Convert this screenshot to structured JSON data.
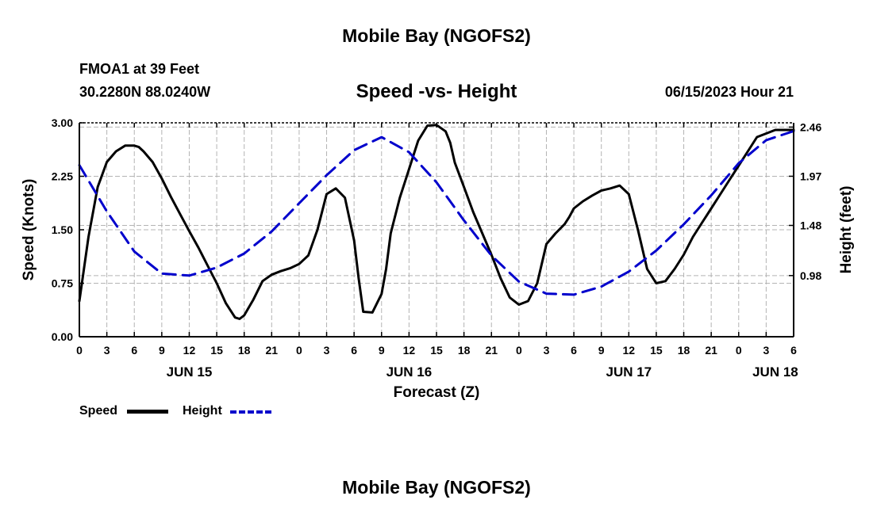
{
  "header": {
    "title": "Mobile Bay (NGOFS2)",
    "station": "FMOA1 at 39 Feet",
    "coords": "30.2280N  88.0240W",
    "chart_subtitle": "Speed -vs- Height",
    "datetime": "06/15/2023 Hour 21",
    "footer_title": "Mobile Bay (NGOFS2)"
  },
  "legend": {
    "speed_label": "Speed",
    "height_label": "Height"
  },
  "colors": {
    "speed": "#000000",
    "height": "#0000cc",
    "grid": "#b4b4b4"
  },
  "chart_data": {
    "type": "line",
    "title": "Speed -vs- Height",
    "xlabel": "Forecast (Z)",
    "ylabel": "Speed (Knots)",
    "y2label": "Height (feet)",
    "x_unit": "hours from 00Z JUN 15",
    "xlim": [
      0,
      78
    ],
    "x_ticks": [
      0,
      3,
      6,
      9,
      12,
      15,
      18,
      21,
      24,
      27,
      30,
      33,
      36,
      39,
      42,
      45,
      48,
      51,
      54,
      57,
      60,
      63,
      66,
      69,
      72,
      75,
      78
    ],
    "x_tick_labels": [
      "0",
      "3",
      "6",
      "9",
      "12",
      "15",
      "18",
      "21",
      "0",
      "3",
      "6",
      "9",
      "12",
      "15",
      "18",
      "21",
      "0",
      "3",
      "6",
      "9",
      "12",
      "15",
      "18",
      "21",
      "0",
      "3",
      "6"
    ],
    "date_labels": [
      {
        "x": 12,
        "label": "JUN 15"
      },
      {
        "x": 36,
        "label": "JUN 16"
      },
      {
        "x": 60,
        "label": "JUN 17"
      },
      {
        "x": 76,
        "label": "JUN 18"
      }
    ],
    "ylim": [
      0,
      3.0
    ],
    "y_ticks": [
      0.0,
      0.75,
      1.5,
      2.25,
      3.0
    ],
    "y_tick_labels": [
      "0.00",
      "0.75",
      "1.50",
      "2.25",
      "3.00"
    ],
    "y2_ticks": [
      0.98,
      1.48,
      1.97,
      2.46
    ],
    "y2_tick_labels": [
      "0.98",
      "1.48",
      "1.97",
      "2.46"
    ],
    "y2lim": [
      0.3705,
      2.5027
    ],
    "grid": true,
    "legend_position": "bottom-left",
    "series": [
      {
        "name": "Speed",
        "axis": "left",
        "style": "solid",
        "x": [
          0,
          1,
          2,
          3,
          4,
          5,
          6,
          6.5,
          7,
          8,
          9,
          10,
          11,
          12,
          13,
          14,
          15,
          16,
          17,
          17.5,
          18,
          19,
          20,
          21,
          22,
          23,
          24,
          25,
          26,
          27,
          28,
          29,
          30,
          30.5,
          31,
          32,
          33,
          33.5,
          34,
          35,
          36,
          37,
          38,
          39,
          40,
          40.5,
          41,
          42,
          43,
          44,
          45,
          46,
          47,
          48,
          49,
          50,
          51,
          52,
          53,
          53.5,
          54,
          55,
          56,
          57,
          58,
          59,
          60,
          61,
          62,
          63,
          64,
          65,
          66,
          67,
          68,
          69,
          70,
          71,
          72,
          73,
          74,
          75,
          76,
          77,
          78
        ],
        "values": [
          0.5,
          1.4,
          2.1,
          2.45,
          2.6,
          2.68,
          2.68,
          2.66,
          2.6,
          2.45,
          2.22,
          1.96,
          1.72,
          1.48,
          1.25,
          1.0,
          0.75,
          0.47,
          0.27,
          0.25,
          0.3,
          0.52,
          0.78,
          0.87,
          0.92,
          0.96,
          1.02,
          1.14,
          1.5,
          2.0,
          2.08,
          1.95,
          1.35,
          0.82,
          0.35,
          0.34,
          0.6,
          0.95,
          1.45,
          1.95,
          2.35,
          2.75,
          2.96,
          2.97,
          2.88,
          2.72,
          2.44,
          2.1,
          1.75,
          1.45,
          1.15,
          0.82,
          0.55,
          0.45,
          0.5,
          0.75,
          1.3,
          1.45,
          1.58,
          1.68,
          1.8,
          1.9,
          1.98,
          2.05,
          2.08,
          2.12,
          2.0,
          1.5,
          0.95,
          0.75,
          0.78,
          0.95,
          1.15,
          1.4,
          1.6,
          1.8,
          2.0,
          2.2,
          2.4,
          2.6,
          2.8,
          2.85,
          2.9,
          2.9,
          2.9
        ],
        "color": "#000000"
      },
      {
        "name": "Height",
        "axis": "right",
        "style": "dashed",
        "x": [
          0,
          3,
          6,
          9,
          12,
          15,
          18,
          21,
          24,
          27,
          30,
          33,
          36,
          39,
          42,
          45,
          48,
          51,
          54,
          57,
          60,
          63,
          66,
          69,
          72,
          75,
          78
        ],
        "values": [
          2.08,
          1.62,
          1.22,
          1.0,
          0.98,
          1.06,
          1.2,
          1.42,
          1.7,
          1.98,
          2.23,
          2.36,
          2.21,
          1.91,
          1.53,
          1.18,
          0.92,
          0.8,
          0.79,
          0.87,
          1.02,
          1.23,
          1.49,
          1.78,
          2.1,
          2.33,
          2.42
        ],
        "color": "#0000cc"
      }
    ]
  }
}
